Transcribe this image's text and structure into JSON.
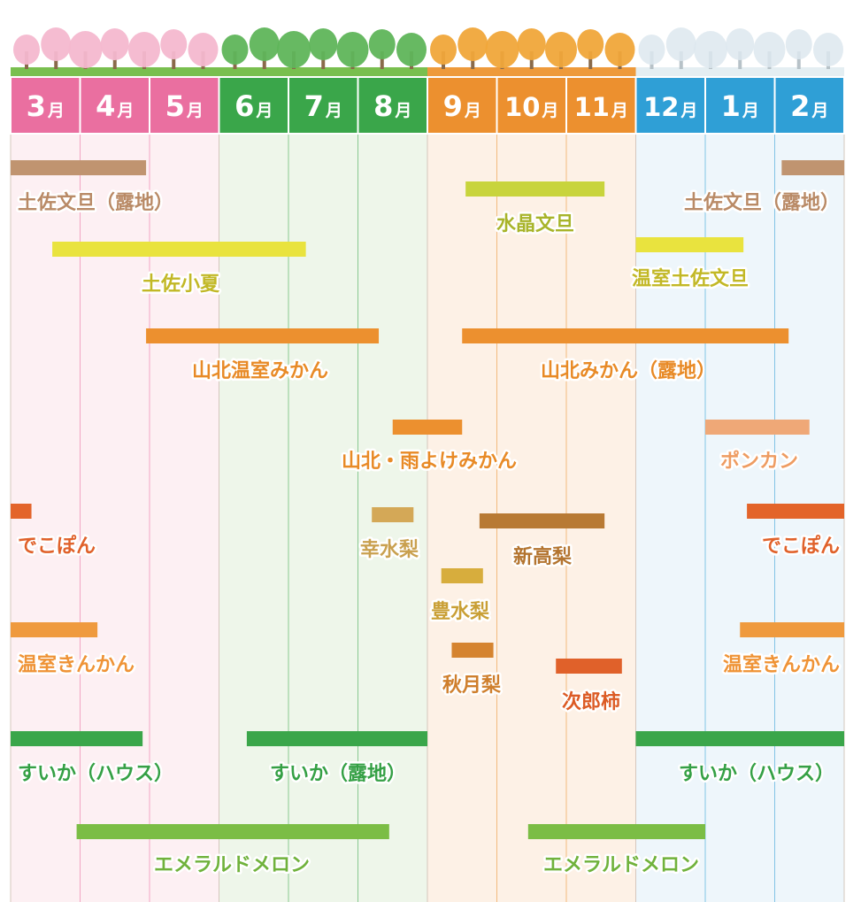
{
  "chart_data": {
    "type": "gantt",
    "title": "",
    "seasons": [
      {
        "name": "spring",
        "months": [
          "3月",
          "4月",
          "5月"
        ],
        "header_color": "#ea6fa0",
        "column_color": "#fdf0f3",
        "tree_color": "#f4b8cf"
      },
      {
        "name": "summer",
        "months": [
          "6月",
          "7月",
          "8月"
        ],
        "header_color": "#3aa64a",
        "column_color": "#eef6ea",
        "tree_color": "#5fb55a"
      },
      {
        "name": "autumn",
        "months": [
          "9月",
          "10月",
          "11月"
        ],
        "header_color": "#ec902f",
        "column_color": "#fdf1e6",
        "tree_color": "#f0a63a"
      },
      {
        "name": "winter",
        "months": [
          "12月",
          "1月",
          "2月"
        ],
        "header_color": "#2f9fd6",
        "column_color": "#eef6fb",
        "tree_color": "#dde8ee"
      }
    ],
    "months": [
      "3月",
      "4月",
      "5月",
      "6月",
      "7月",
      "8月",
      "9月",
      "10月",
      "11月",
      "12月",
      "1月",
      "2月"
    ],
    "crops": [
      {
        "name": "土佐文旦（露地）",
        "color": "#c09470",
        "label_color": "#b98a66",
        "segments": [
          {
            "start": 0.0,
            "end": 1.95,
            "label": "土佐文旦（露地）"
          },
          {
            "start": 11.1,
            "end": 12.0,
            "label": "土佐文旦（露地）"
          }
        ]
      },
      {
        "name": "水晶文旦",
        "color": "#c8d43c",
        "label_color": "#a8b42a",
        "segments": [
          {
            "start": 6.55,
            "end": 8.55,
            "label": "水晶文旦"
          }
        ]
      },
      {
        "name": "土佐小夏",
        "color": "#e9e33e",
        "label_color": "#c2b826",
        "segments": [
          {
            "start": 0.6,
            "end": 4.25,
            "label": "土佐小夏"
          }
        ]
      },
      {
        "name": "温室土佐文旦",
        "color": "#e9e33e",
        "label_color": "#c2b826",
        "segments": [
          {
            "start": 9.0,
            "end": 10.55,
            "label": "温室土佐文旦"
          }
        ]
      },
      {
        "name": "山北温室みかん",
        "color": "#ec902f",
        "label_color": "#e88a26",
        "segments": [
          {
            "start": 1.95,
            "end": 5.3,
            "label": "山北温室みかん"
          }
        ]
      },
      {
        "name": "山北みかん（露地）",
        "color": "#ec902f",
        "label_color": "#e88a26",
        "segments": [
          {
            "start": 6.5,
            "end": 11.2,
            "label": "山北みかん（露地）"
          }
        ]
      },
      {
        "name": "山北・雨よけみかん",
        "color": "#ec902f",
        "label_color": "#e88a26",
        "segments": [
          {
            "start": 5.5,
            "end": 6.5,
            "label": "山北・雨よけみかん"
          }
        ]
      },
      {
        "name": "ポンカン",
        "color": "#efa877",
        "label_color": "#ee9c62",
        "segments": [
          {
            "start": 10.0,
            "end": 11.5,
            "label": "ポンカン"
          }
        ]
      },
      {
        "name": "でこぽん",
        "color": "#e3642a",
        "label_color": "#e0612a",
        "segments": [
          {
            "start": 0.0,
            "end": 0.3,
            "label": "でこぽん"
          },
          {
            "start": 10.6,
            "end": 12.0,
            "label": "でこぽん"
          }
        ]
      },
      {
        "name": "幸水梨",
        "color": "#d4a857",
        "label_color": "#c9a04f",
        "segments": [
          {
            "start": 5.2,
            "end": 5.8,
            "label": "幸水梨"
          }
        ]
      },
      {
        "name": "新高梨",
        "color": "#b87a34",
        "label_color": "#b3742f",
        "segments": [
          {
            "start": 6.75,
            "end": 8.55,
            "label": "新高梨"
          }
        ]
      },
      {
        "name": "豊水梨",
        "color": "#d7ad3d",
        "label_color": "#c99f35",
        "segments": [
          {
            "start": 6.2,
            "end": 6.8,
            "label": "豊水梨"
          }
        ]
      },
      {
        "name": "温室きんかん",
        "color": "#ef9a3e",
        "label_color": "#ef9336",
        "segments": [
          {
            "start": 0.0,
            "end": 1.25,
            "label": "温室きんかん"
          },
          {
            "start": 10.5,
            "end": 12.0,
            "label": "温室きんかん"
          }
        ]
      },
      {
        "name": "秋月梨",
        "color": "#d58430",
        "label_color": "#cf7f2d",
        "segments": [
          {
            "start": 6.35,
            "end": 6.95,
            "label": "秋月梨"
          }
        ]
      },
      {
        "name": "次郎柿",
        "color": "#e0612a",
        "label_color": "#dc5b25",
        "segments": [
          {
            "start": 7.85,
            "end": 8.8,
            "label": "次郎柿"
          }
        ]
      },
      {
        "name": "すいか（ハウス）",
        "color": "#3aa64a",
        "label_color": "#35a045",
        "segments": [
          {
            "start": 0.0,
            "end": 1.9,
            "label": "すいか（ハウス）"
          },
          {
            "start": 9.0,
            "end": 12.0,
            "label": "すいか（ハウス）"
          }
        ]
      },
      {
        "name": "すいか（露地）",
        "color": "#3aa64a",
        "label_color": "#35a045",
        "segments": [
          {
            "start": 3.4,
            "end": 6.0,
            "label": "すいか（露地）"
          }
        ]
      },
      {
        "name": "エメラルドメロン",
        "color": "#7bbd45",
        "label_color": "#70b23c",
        "segments": [
          {
            "start": 0.95,
            "end": 5.45,
            "label": "エメラルドメロン"
          },
          {
            "start": 7.45,
            "end": 10.0,
            "label": "エメラルドメロン"
          }
        ]
      }
    ]
  }
}
